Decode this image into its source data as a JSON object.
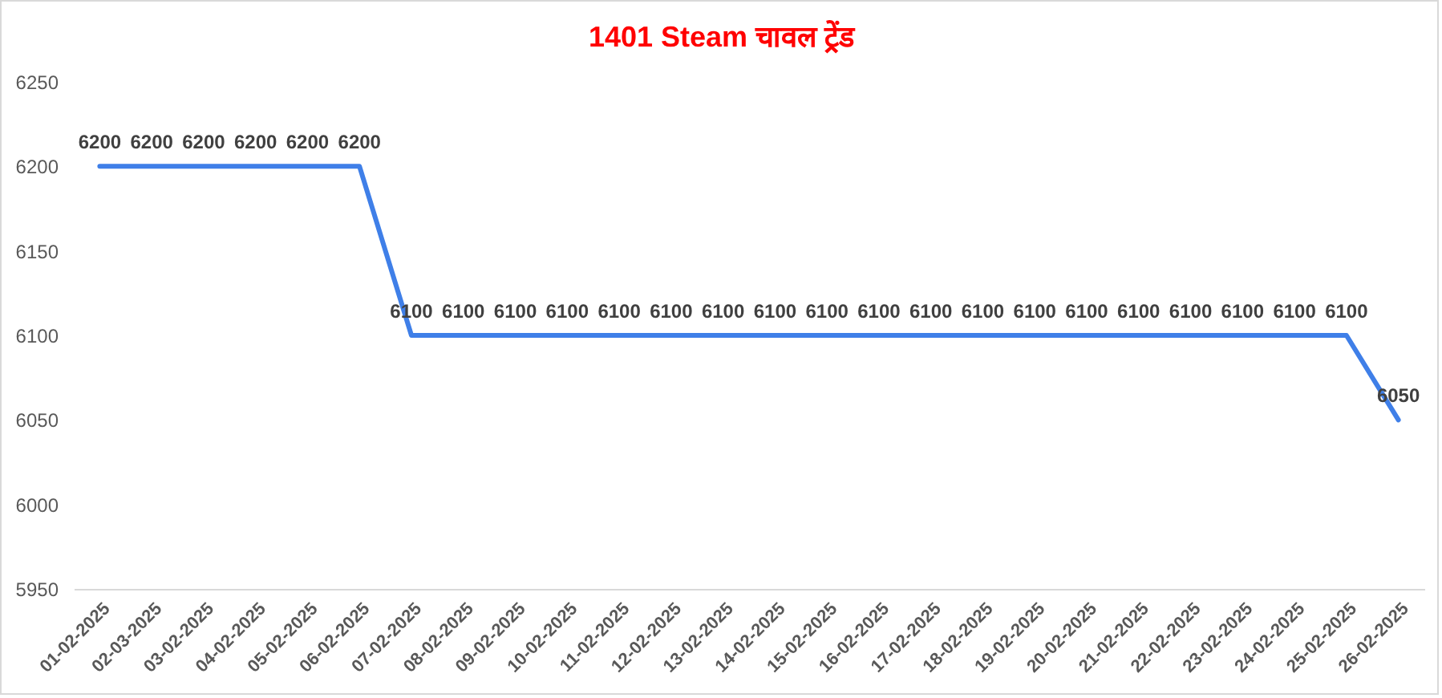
{
  "chart_data": {
    "type": "line",
    "title": "1401 Steam चावल ट्रेंड",
    "categories": [
      "01-02-2025",
      "02-03-2025",
      "03-02-2025",
      "04-02-2025",
      "05-02-2025",
      "06-02-2025",
      "07-02-2025",
      "08-02-2025",
      "09-02-2025",
      "10-02-2025",
      "11-02-2025",
      "12-02-2025",
      "13-02-2025",
      "14-02-2025",
      "15-02-2025",
      "16-02-2025",
      "17-02-2025",
      "18-02-2025",
      "19-02-2025",
      "20-02-2025",
      "21-02-2025",
      "22-02-2025",
      "23-02-2025",
      "24-02-2025",
      "25-02-2025",
      "26-02-2025"
    ],
    "series": [
      {
        "color": "#3f7fe8",
        "values": [
          6200,
          6200,
          6200,
          6200,
          6200,
          6200,
          6100,
          6100,
          6100,
          6100,
          6100,
          6100,
          6100,
          6100,
          6100,
          6100,
          6100,
          6100,
          6100,
          6100,
          6100,
          6100,
          6100,
          6100,
          6100,
          6050
        ]
      }
    ],
    "ylim": [
      5950,
      6250
    ],
    "yticks": [
      5950,
      6000,
      6050,
      6100,
      6150,
      6200,
      6250
    ],
    "line_style": "solid",
    "data_labels": true
  }
}
